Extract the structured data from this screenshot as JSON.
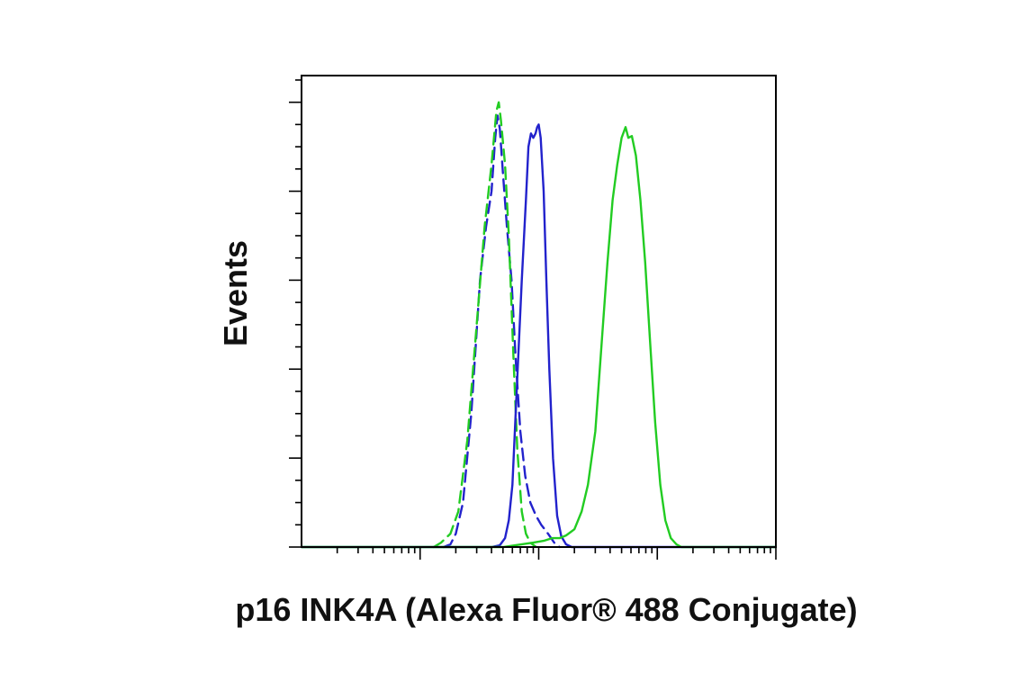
{
  "chart_data": {
    "type": "line",
    "title": "",
    "xlabel": "p16 INK4A (Alexa Fluor® 488 Conjugate)",
    "ylabel": "Events",
    "x_scale": "log",
    "xlim": [
      10000,
      100000000
    ],
    "ylim": [
      0,
      5.3
    ],
    "x_major_ticks": [
      100000,
      1000000,
      10000000,
      100000000
    ],
    "y_major_ticks": [
      0,
      1,
      2,
      3,
      4,
      5
    ],
    "grid": false,
    "legend": "none",
    "series": [
      {
        "color": "#2222cc",
        "dash": true,
        "points": [
          [
            158000,
            0
          ],
          [
            180000,
            0.03
          ],
          [
            200000,
            0.15
          ],
          [
            230000,
            0.5
          ],
          [
            270000,
            1.5
          ],
          [
            320000,
            3.0
          ],
          [
            360000,
            3.6
          ],
          [
            400000,
            4.0
          ],
          [
            430000,
            4.6
          ],
          [
            450000,
            4.85
          ],
          [
            470000,
            4.7
          ],
          [
            500000,
            4.2
          ],
          [
            540000,
            3.6
          ],
          [
            590000,
            3.0
          ],
          [
            640000,
            2.1
          ],
          [
            700000,
            1.3
          ],
          [
            770000,
            0.8
          ],
          [
            850000,
            0.5
          ],
          [
            950000,
            0.35
          ],
          [
            1050000,
            0.25
          ],
          [
            1200000,
            0.15
          ],
          [
            1350000,
            0.05
          ],
          [
            1500000,
            0
          ]
        ]
      },
      {
        "color": "#22cc22",
        "dash": true,
        "points": [
          [
            130000,
            0
          ],
          [
            150000,
            0.05
          ],
          [
            180000,
            0.15
          ],
          [
            210000,
            0.4
          ],
          [
            250000,
            1.2
          ],
          [
            300000,
            2.5
          ],
          [
            350000,
            3.6
          ],
          [
            400000,
            4.3
          ],
          [
            440000,
            4.9
          ],
          [
            460000,
            5.0
          ],
          [
            480000,
            4.8
          ],
          [
            520000,
            4.3
          ],
          [
            560000,
            3.5
          ],
          [
            610000,
            2.2
          ],
          [
            660000,
            1.1
          ],
          [
            720000,
            0.4
          ],
          [
            780000,
            0.15
          ],
          [
            850000,
            0.05
          ],
          [
            950000,
            0
          ]
        ]
      },
      {
        "color": "#2222cc",
        "dash": false,
        "points": [
          [
            10000,
            0
          ],
          [
            400000,
            0
          ],
          [
            470000,
            0.02
          ],
          [
            520000,
            0.1
          ],
          [
            560000,
            0.3
          ],
          [
            600000,
            0.7
          ],
          [
            660000,
            1.9
          ],
          [
            720000,
            3.0
          ],
          [
            780000,
            3.9
          ],
          [
            820000,
            4.5
          ],
          [
            860000,
            4.65
          ],
          [
            900000,
            4.6
          ],
          [
            940000,
            4.65
          ],
          [
            970000,
            4.72
          ],
          [
            1000000,
            4.75
          ],
          [
            1040000,
            4.6
          ],
          [
            1100000,
            4.0
          ],
          [
            1160000,
            3.0
          ],
          [
            1230000,
            2.0
          ],
          [
            1320000,
            1.0
          ],
          [
            1430000,
            0.35
          ],
          [
            1550000,
            0.12
          ],
          [
            1700000,
            0.03
          ],
          [
            1900000,
            0
          ],
          [
            100000000,
            0
          ]
        ]
      },
      {
        "color": "#22cc22",
        "dash": false,
        "points": [
          [
            10000,
            0
          ],
          [
            500000,
            0
          ],
          [
            900000,
            0.05
          ],
          [
            1100000,
            0.07
          ],
          [
            1300000,
            0.1
          ],
          [
            1500000,
            0.1
          ],
          [
            1700000,
            0.13
          ],
          [
            2000000,
            0.2
          ],
          [
            2300000,
            0.4
          ],
          [
            2600000,
            0.7
          ],
          [
            3000000,
            1.3
          ],
          [
            3400000,
            2.3
          ],
          [
            3800000,
            3.2
          ],
          [
            4200000,
            3.9
          ],
          [
            4600000,
            4.3
          ],
          [
            5000000,
            4.6
          ],
          [
            5400000,
            4.72
          ],
          [
            5700000,
            4.6
          ],
          [
            6100000,
            4.62
          ],
          [
            6600000,
            4.4
          ],
          [
            7200000,
            3.9
          ],
          [
            7900000,
            3.2
          ],
          [
            8700000,
            2.3
          ],
          [
            9600000,
            1.4
          ],
          [
            10600000,
            0.7
          ],
          [
            11700000,
            0.3
          ],
          [
            13000000,
            0.1
          ],
          [
            14500000,
            0.03
          ],
          [
            16000000,
            0
          ],
          [
            100000000,
            0
          ]
        ]
      }
    ]
  }
}
